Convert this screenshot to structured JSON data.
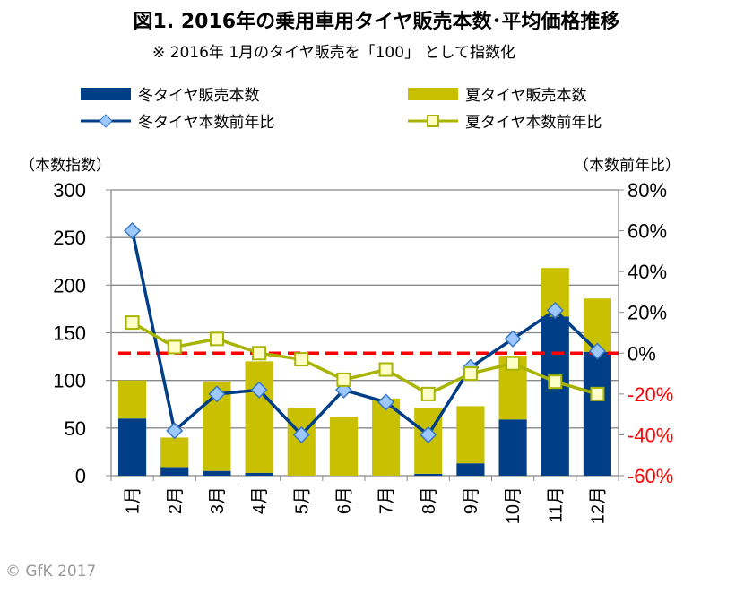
{
  "chart_data": {
    "type": "bar",
    "title": "図1. 2016年の乗用車用タイヤ販売本数･平均価格推移",
    "subtitle": "※ 2016年 1月のタイヤ販売を「100」 として指数化",
    "ylabel_left": "（本数指数）",
    "ylabel_right": "（本数前年比）",
    "categories": [
      "1月",
      "2月",
      "3月",
      "4月",
      "5月",
      "6月",
      "7月",
      "8月",
      "9月",
      "10月",
      "11月",
      "12月"
    ],
    "ylim_left": [
      0,
      300
    ],
    "yticks_left": [
      "0",
      "50",
      "100",
      "150",
      "200",
      "250",
      "300"
    ],
    "ylim_right": [
      -60,
      80
    ],
    "yticks_right": [
      "-60%",
      "-40%",
      "-20%",
      "0%",
      "20%",
      "40%",
      "60%",
      "80%"
    ],
    "grid": true,
    "legend_placement": "top",
    "series": [
      {
        "name": "冬タイヤ販売本数",
        "kind": "stacked-bar",
        "axis": "left",
        "color": "#003f87",
        "values": [
          60,
          9,
          5,
          3,
          0,
          0,
          0,
          2,
          13,
          59,
          167,
          130
        ]
      },
      {
        "name": "夏タイヤ販売本数",
        "kind": "stacked-bar",
        "axis": "left",
        "color": "#c8c000",
        "values": [
          40,
          31,
          94,
          117,
          71,
          62,
          81,
          69,
          60,
          67,
          51,
          56
        ]
      },
      {
        "name": "冬タイヤ本数前年比",
        "kind": "line",
        "axis": "right",
        "color": "#003f87",
        "marker": "diamond",
        "marker_color": "#9cc8ff",
        "values": [
          60,
          -38,
          -20,
          -18,
          -40,
          -18,
          -24,
          -40,
          -7,
          7,
          21,
          1
        ]
      },
      {
        "name": "夏タイヤ本数前年比",
        "kind": "line",
        "axis": "right",
        "color": "#a8b400",
        "marker": "square",
        "marker_color": "#ffffc8",
        "values": [
          15,
          3,
          7,
          0,
          -3,
          -13,
          -8,
          -20,
          -10,
          -5,
          -14,
          -20
        ]
      }
    ],
    "reference_line": {
      "axis": "right",
      "value": 0,
      "color": "#ff0000",
      "style": "dashed"
    },
    "negative_tick_color": "#ff0000"
  },
  "footer": {
    "copyright": "© GfK 2017"
  }
}
